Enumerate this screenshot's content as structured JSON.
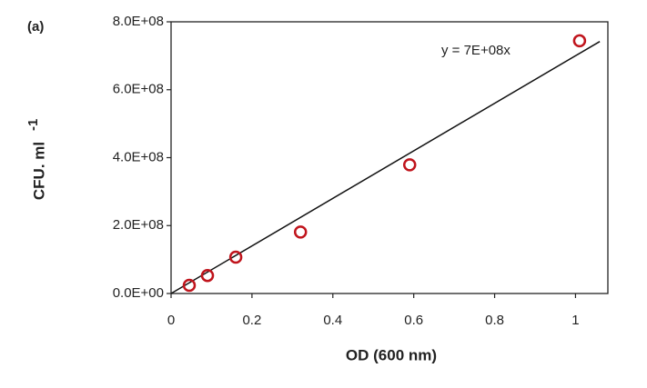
{
  "chart_data": {
    "type": "scatter",
    "panel_label": "(a)",
    "x_label": "OD (600 nm)",
    "y_label": "CFU. ml",
    "y_label_superscript": "-1",
    "x": [
      0.045,
      0.09,
      0.16,
      0.32,
      0.59,
      1.01
    ],
    "series": [
      {
        "name": "CFU",
        "color": "#c0141c",
        "values": [
          24000000,
          53000000,
          107000000,
          181000000,
          379000000,
          744000000
        ]
      }
    ],
    "trendline": {
      "equation": "y = 7E+08x",
      "slope": 700000000,
      "x_range": [
        0,
        1.06
      ],
      "color": "#111111"
    },
    "xlim": [
      0,
      1.08
    ],
    "xticks": [
      0,
      0.2,
      0.4,
      0.6,
      0.8,
      1
    ],
    "ylim": [
      0,
      800000000
    ],
    "yticks": [
      {
        "value": 0,
        "label": "0.0E+00"
      },
      {
        "value": 200000000,
        "label": "2.0E+08"
      },
      {
        "value": 400000000,
        "label": "4.0E+08"
      },
      {
        "value": 600000000,
        "label": "6.0E+08"
      },
      {
        "value": 800000000,
        "label": "8.0E+08"
      }
    ]
  }
}
